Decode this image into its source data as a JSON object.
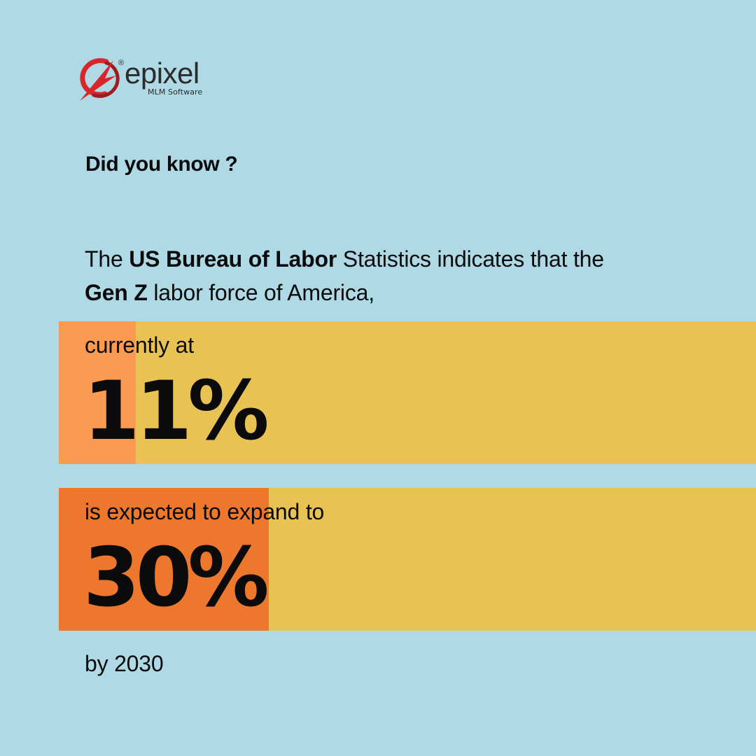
{
  "brand": {
    "name": "epixel",
    "registered": "®",
    "tagline": "MLM Software",
    "logo_color": "#d9262b"
  },
  "heading": "Did you know ?",
  "intro": {
    "p1": "The ",
    "b1": "US Bureau of Labor",
    "p2": " Statistics indicates that the ",
    "b2": "Gen Z",
    "p3": " labor force of America,"
  },
  "stats": [
    {
      "label": "currently at",
      "value": "11%",
      "fraction": 0.11,
      "fill_color": "#fc9a52"
    },
    {
      "label": "is expected to expand to",
      "value": "30%",
      "fraction": 0.3,
      "fill_color": "#ec772d"
    }
  ],
  "footer": "by 2030",
  "colors": {
    "background": "#aed9e5",
    "bar": "#e8c253"
  }
}
